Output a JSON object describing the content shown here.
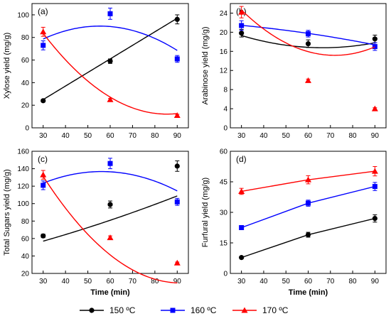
{
  "legend": {
    "items": [
      {
        "label": "150 ºC",
        "color": "#000000",
        "marker": "circle"
      },
      {
        "label": "160 ºC",
        "color": "#0000ff",
        "marker": "square"
      },
      {
        "label": "170 ºC",
        "color": "#ff0000",
        "marker": "triangle"
      }
    ]
  },
  "chart_data": [
    {
      "type": "scatter",
      "panel_label": "(a)",
      "xlabel": "",
      "ylabel": "Xylose yield (mg/g)",
      "xlim": [
        25,
        95
      ],
      "xticks": [
        30,
        40,
        50,
        60,
        70,
        80,
        90
      ],
      "ylim": [
        0,
        110
      ],
      "yticks": [
        0,
        20,
        40,
        60,
        80,
        100
      ],
      "series": [
        {
          "name": "150 ºC",
          "color": "#000000",
          "marker": "circle",
          "x": [
            30,
            60,
            90
          ],
          "y": [
            24,
            59,
            96
          ],
          "err": [
            1,
            2,
            4
          ],
          "fit_coeffs": [
            -11,
            1.2,
            0
          ],
          "fit_range": [
            30,
            90
          ]
        },
        {
          "name": "160 ºC",
          "color": "#0000ff",
          "marker": "square",
          "x": [
            30,
            60,
            90
          ],
          "y": [
            73,
            101,
            61
          ],
          "err": [
            4,
            5,
            3
          ],
          "fit_coeffs": [
            35.3,
            1.98,
            -0.0179
          ],
          "fit_range": [
            30,
            90
          ]
        },
        {
          "name": "170 ºC",
          "color": "#ff0000",
          "marker": "triangle",
          "x": [
            30,
            60,
            90
          ],
          "y": [
            85,
            25,
            11
          ],
          "err": [
            4,
            1,
            1
          ],
          "fit_coeffs": [
            182.1,
            -3.98,
            0.0233
          ],
          "fit_range": [
            30,
            90
          ]
        }
      ]
    },
    {
      "type": "scatter",
      "panel_label": "(b)",
      "xlabel": "",
      "ylabel": "Arabinose yield (mg/g)",
      "xlim": [
        25,
        95
      ],
      "xticks": [
        30,
        40,
        50,
        60,
        70,
        80,
        90
      ],
      "ylim": [
        0,
        26
      ],
      "yticks": [
        0,
        4,
        8,
        12,
        16,
        20,
        24
      ],
      "series": [
        {
          "name": "150 ºC",
          "color": "#000000",
          "marker": "circle",
          "x": [
            30,
            60,
            90
          ],
          "y": [
            19.8,
            17.6,
            18.6
          ],
          "err": [
            0.8,
            0.8,
            0.8
          ],
          "fit_coeffs": [
            25.2,
            -0.2533,
            0.0019
          ],
          "fit_range": [
            30,
            90
          ]
        },
        {
          "name": "160 ºC",
          "color": "#0000ff",
          "marker": "square",
          "x": [
            30,
            60,
            90
          ],
          "y": [
            21.4,
            19.7,
            17.0
          ],
          "err": [
            1.0,
            0.7,
            0.8
          ],
          "fit_coeffs": [
            22.4,
            -0.02,
            -0.0004
          ],
          "fit_range": [
            30,
            90
          ]
        },
        {
          "name": "170 ºC",
          "color": "#ff0000",
          "marker": "triangle",
          "x": [
            30,
            60,
            90
          ],
          "y": [
            24.2,
            9.9,
            4.0
          ],
          "err": [
            1.2,
            0.3,
            0.2
          ],
          "fit_coeffs": [
            43.1,
            -0.7767,
            0.0054
          ],
          "fit_range": [
            30,
            90
          ]
        }
      ]
    },
    {
      "type": "scatter",
      "panel_label": "(c)",
      "xlabel": "Time (min)",
      "ylabel": "Total Sugars yield (mg/g)",
      "xlim": [
        25,
        95
      ],
      "xticks": [
        30,
        40,
        50,
        60,
        70,
        80,
        90
      ],
      "ylim": [
        20,
        160
      ],
      "yticks": [
        20,
        40,
        60,
        80,
        100,
        120,
        140,
        160
      ],
      "series": [
        {
          "name": "150 ºC",
          "color": "#000000",
          "marker": "circle",
          "x": [
            30,
            60,
            90
          ],
          "y": [
            63,
            99,
            143
          ],
          "err": [
            2,
            4,
            6
          ],
          "fit_coeffs": [
            37,
            0.6,
            0.0022
          ],
          "fit_range": [
            30,
            90
          ]
        },
        {
          "name": "160 ºC",
          "color": "#0000ff",
          "marker": "square",
          "x": [
            30,
            60,
            90
          ],
          "y": [
            121,
            146,
            102
          ],
          "err": [
            5,
            6,
            4
          ],
          "fit_coeffs": [
            75.5,
            2.18,
            -0.0194
          ],
          "fit_range": [
            30,
            90
          ]
        },
        {
          "name": "170 ºC",
          "color": "#ff0000",
          "marker": "triangle",
          "x": [
            30,
            60,
            90
          ],
          "y": [
            133,
            61,
            32
          ],
          "err": [
            5,
            2,
            1
          ],
          "fit_coeffs": [
            279.3,
            -5.9,
            0.0322
          ],
          "fit_range": [
            30,
            90
          ]
        }
      ]
    },
    {
      "type": "line",
      "panel_label": "(d)",
      "xlabel": "Time (min)",
      "ylabel": "Furfural yield (mg/g)",
      "xlim": [
        25,
        95
      ],
      "xticks": [
        30,
        40,
        50,
        60,
        70,
        80,
        90
      ],
      "ylim": [
        0,
        60
      ],
      "yticks": [
        0,
        15,
        30,
        45,
        60
      ],
      "series": [
        {
          "name": "150 ºC",
          "color": "#000000",
          "marker": "circle",
          "x": [
            30,
            60,
            90
          ],
          "y": [
            7.8,
            19.0,
            27.0
          ],
          "err": [
            0.5,
            1.2,
            1.8
          ]
        },
        {
          "name": "160 ºC",
          "color": "#0000ff",
          "marker": "square",
          "x": [
            30,
            60,
            90
          ],
          "y": [
            22.5,
            34.5,
            42.7
          ],
          "err": [
            0.8,
            1.5,
            2.0
          ]
        },
        {
          "name": "170 ºC",
          "color": "#ff0000",
          "marker": "triangle",
          "x": [
            30,
            60,
            90
          ],
          "y": [
            40.3,
            46.0,
            50.2
          ],
          "err": [
            1.5,
            2.0,
            2.3
          ]
        }
      ]
    }
  ]
}
